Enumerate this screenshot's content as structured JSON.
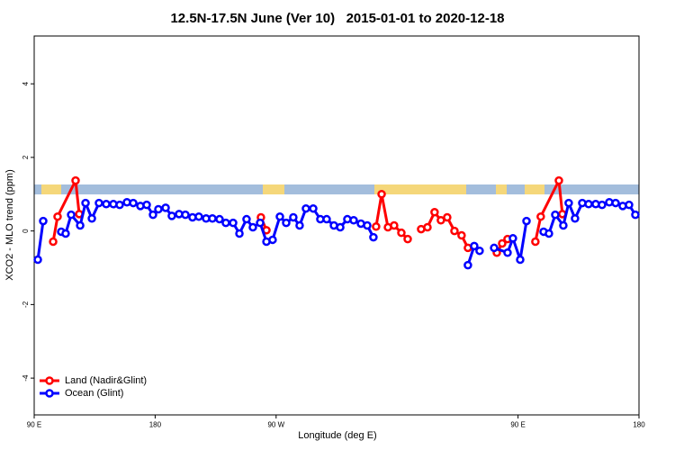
{
  "chart_data": {
    "type": "line",
    "title": "12.5N-17.5N June (Ver 10)   2015-01-01 to 2020-12-18",
    "xlabel": "Longitude (deg E)",
    "ylabel": "XCO2 - MLO trend (ppm)",
    "xlim": [
      90,
      540
    ],
    "ylim": [
      -5,
      5.3
    ],
    "xticks": [
      {
        "value": 90,
        "label": "90 E"
      },
      180,
      {
        "value": 270,
        "label": "90 W"
      },
      {
        "value": 450,
        "label": "90 E"
      },
      {
        "value": 540,
        "label": "180"
      }
    ],
    "yticks": [
      -4,
      -2,
      0,
      2,
      4
    ],
    "legend": "bottom-left",
    "series": [
      {
        "name": "Land (Nadir&Glint)",
        "color": "#ff0000",
        "x": [
          104.1,
          107.4,
          120.8,
          123.5,
          null,
          258.7,
          262.8,
          null,
          344.4,
          348.5,
          353.2,
          357.8,
          363.2,
          367.9,
          null,
          377.9,
          382.6,
          387.9,
          392.6,
          397.3,
          402.7,
          408.0,
          412.7,
          null,
          434.2,
          438.2,
          442.2,
          null,
          462.9,
          466.9,
          480.4,
          483.0
        ],
        "values": [
          -0.29,
          0.39,
          1.37,
          0.46,
          null,
          0.37,
          0.02,
          null,
          0.12,
          1.0,
          0.1,
          0.15,
          -0.05,
          -0.22,
          null,
          0.05,
          0.1,
          0.51,
          0.29,
          0.37,
          0.0,
          -0.12,
          -0.46,
          null,
          -0.59,
          -0.34,
          -0.22,
          null,
          -0.29,
          0.39,
          1.37,
          0.46
        ]
      },
      {
        "name": "Ocean (Glint)",
        "color": "#0000ff",
        "x": [
          92.7,
          96.7,
          null,
          110.1,
          113.4,
          117.5,
          124.2,
          128.2,
          132.9,
          138.2,
          143.6,
          148.9,
          153.6,
          159.0,
          163.7,
          169.0,
          173.7,
          178.4,
          182.4,
          187.8,
          192.4,
          197.8,
          202.5,
          207.8,
          212.5,
          217.9,
          222.6,
          227.9,
          232.6,
          238.0,
          242.7,
          248.0,
          252.7,
          258.1,
          262.8,
          267.4,
          272.8,
          277.5,
          282.8,
          287.5,
          292.2,
          297.6,
          302.9,
          307.6,
          313.0,
          317.7,
          323.0,
          327.7,
          333.1,
          337.8,
          342.4,
          null,
          412.7,
          417.4,
          421.4,
          null,
          432.2,
          442.2,
          446.2,
          451.6,
          456.3,
          null,
          469.0,
          473.0,
          477.7,
          483.7,
          487.7,
          492.4,
          497.8,
          502.5,
          507.8,
          512.5,
          517.9,
          522.6,
          527.9,
          532.6,
          537.3
        ],
        "values": [
          -0.78,
          0.27,
          null,
          -0.02,
          -0.07,
          0.44,
          0.15,
          0.76,
          0.34,
          0.76,
          0.73,
          0.73,
          0.71,
          0.78,
          0.76,
          0.68,
          0.71,
          0.44,
          0.59,
          0.63,
          0.41,
          0.46,
          0.44,
          0.37,
          0.39,
          0.34,
          0.34,
          0.32,
          0.22,
          0.22,
          -0.07,
          0.32,
          0.1,
          0.22,
          -0.29,
          -0.24,
          0.39,
          0.22,
          0.37,
          0.15,
          0.61,
          0.61,
          0.32,
          0.32,
          0.15,
          0.1,
          0.32,
          0.29,
          0.2,
          0.15,
          -0.17,
          null,
          -0.93,
          -0.41,
          -0.54,
          null,
          -0.46,
          -0.59,
          -0.2,
          -0.78,
          0.27,
          null,
          -0.02,
          -0.07,
          0.44,
          0.15,
          0.76,
          0.34,
          0.76,
          0.73,
          0.73,
          0.71,
          0.78,
          0.76,
          0.68,
          0.71,
          0.44
        ]
      }
    ]
  }
}
